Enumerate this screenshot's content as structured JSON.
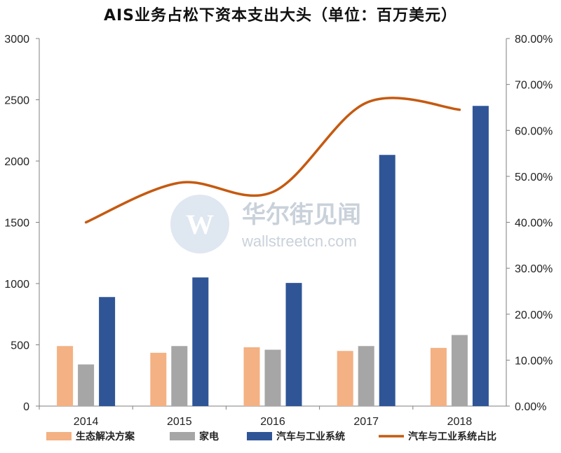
{
  "chart_data": {
    "type": "bar",
    "title": "AIS业务占松下资本支出大头（单位：百万美元）",
    "categories": [
      "2014",
      "2015",
      "2016",
      "2017",
      "2018"
    ],
    "series": [
      {
        "name": "生态解决方案",
        "kind": "bar",
        "axis": "left",
        "color": "#f4b183",
        "values": [
          490,
          435,
          480,
          450,
          475
        ]
      },
      {
        "name": "家电",
        "kind": "bar",
        "axis": "left",
        "color": "#a6a6a6",
        "values": [
          340,
          490,
          460,
          490,
          580
        ]
      },
      {
        "name": "汽车与工业系统",
        "kind": "bar",
        "axis": "left",
        "color": "#2f5597",
        "values": [
          890,
          1050,
          1005,
          2050,
          2450
        ]
      },
      {
        "name": "汽车与工业系统占比",
        "kind": "line",
        "axis": "right",
        "color": "#c55a11",
        "values": [
          0.4,
          0.486,
          0.466,
          0.66,
          0.645
        ]
      }
    ],
    "y_left": {
      "ylim": [
        0,
        3000
      ],
      "ticks": [
        "0",
        "500",
        "1000",
        "1500",
        "2000",
        "2500",
        "3000"
      ]
    },
    "y_right": {
      "ylim": [
        0,
        0.8
      ],
      "ticks": [
        "0.00%",
        "10.00%",
        "20.00%",
        "30.00%",
        "40.00%",
        "50.00%",
        "60.00%",
        "70.00%",
        "80.00%"
      ]
    },
    "legend_position": "bottom",
    "grid": false
  },
  "watermark": {
    "name": "华尔街见闻",
    "url": "wallstreetcn.com",
    "logo_letter": "W"
  }
}
